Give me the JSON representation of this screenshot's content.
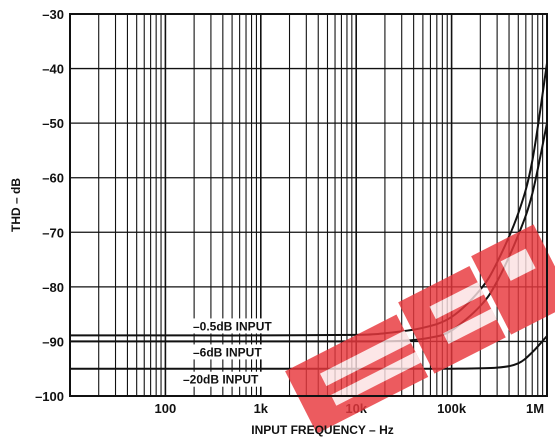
{
  "chart_data": {
    "type": "line",
    "title": "",
    "xlabel": "INPUT FREQUENCY – Hz",
    "ylabel": "THD – dB",
    "x_scale": "log",
    "xlim": [
      10,
      1000000
    ],
    "ylim": [
      -100,
      -30
    ],
    "grid": true,
    "x_ticks": [
      {
        "value": 100,
        "label": "100"
      },
      {
        "value": 1000,
        "label": "1k"
      },
      {
        "value": 10000,
        "label": "10k"
      },
      {
        "value": 100000,
        "label": "100k"
      },
      {
        "value": 1000000,
        "label": "1M"
      }
    ],
    "y_ticks": [
      {
        "value": -30,
        "label": "–30"
      },
      {
        "value": -40,
        "label": "–40"
      },
      {
        "value": -50,
        "label": "–50"
      },
      {
        "value": -60,
        "label": "–60"
      },
      {
        "value": -70,
        "label": "–70"
      },
      {
        "value": -80,
        "label": "–80"
      },
      {
        "value": -90,
        "label": "–90"
      },
      {
        "value": -100,
        "label": "–100"
      }
    ],
    "series": [
      {
        "name": "–0.5dB INPUT",
        "color": "#111111",
        "x": [
          10,
          100,
          1000,
          10000,
          20000,
          50000,
          100000,
          200000,
          300000,
          500000,
          700000,
          1000000
        ],
        "y": [
          -88.9,
          -88.9,
          -88.9,
          -88.8,
          -88.5,
          -87.5,
          -85.5,
          -80.5,
          -75.5,
          -66.5,
          -57,
          -39
        ]
      },
      {
        "name": "–6dB INPUT",
        "color": "#111111",
        "x": [
          10,
          100,
          1000,
          10000,
          30000,
          60000,
          100000,
          200000,
          300000,
          500000,
          700000,
          1000000
        ],
        "y": [
          -90,
          -90,
          -90,
          -90,
          -89.9,
          -89.3,
          -88,
          -83.5,
          -79,
          -70.5,
          -63,
          -50
        ]
      },
      {
        "name": "–20dB INPUT",
        "color": "#111111",
        "x": [
          10,
          100,
          1000,
          10000,
          100000,
          300000,
          500000,
          700000,
          1000000
        ],
        "y": [
          -95,
          -95,
          -95,
          -95,
          -95,
          -94.8,
          -94,
          -92,
          -89
        ]
      }
    ]
  },
  "watermark": {
    "text": "EEP",
    "color": "#e8383d"
  }
}
